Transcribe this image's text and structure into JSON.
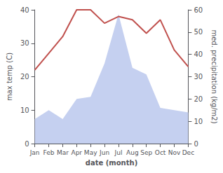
{
  "chart_data": {
    "type": "line",
    "xlabel": "date (month)",
    "ylabel": "max temp (C)",
    "y2label": "med. precipitation (kg/m2)",
    "categories": [
      "Jan",
      "Feb",
      "Mar",
      "Apr",
      "May",
      "Jun",
      "Jul",
      "Aug",
      "Sep",
      "Oct",
      "Nov",
      "Dec"
    ],
    "series": [
      {
        "type": "area",
        "axis": "y2",
        "color": "#c5d0f0",
        "values": [
          11,
          15,
          11,
          20,
          21,
          36,
          58,
          34,
          31,
          16,
          15,
          14
        ]
      },
      {
        "type": "line",
        "color": "#c0504d",
        "values": [
          22,
          27,
          32,
          40,
          40,
          36,
          38,
          37,
          33,
          37,
          28,
          23
        ]
      }
    ],
    "ylim": [
      0,
      40
    ],
    "yticks": [
      0,
      10,
      20,
      30,
      40
    ],
    "y2lim": [
      0,
      60
    ],
    "y2ticks": [
      0,
      10,
      20,
      30,
      40,
      50,
      60
    ],
    "grid": false
  }
}
